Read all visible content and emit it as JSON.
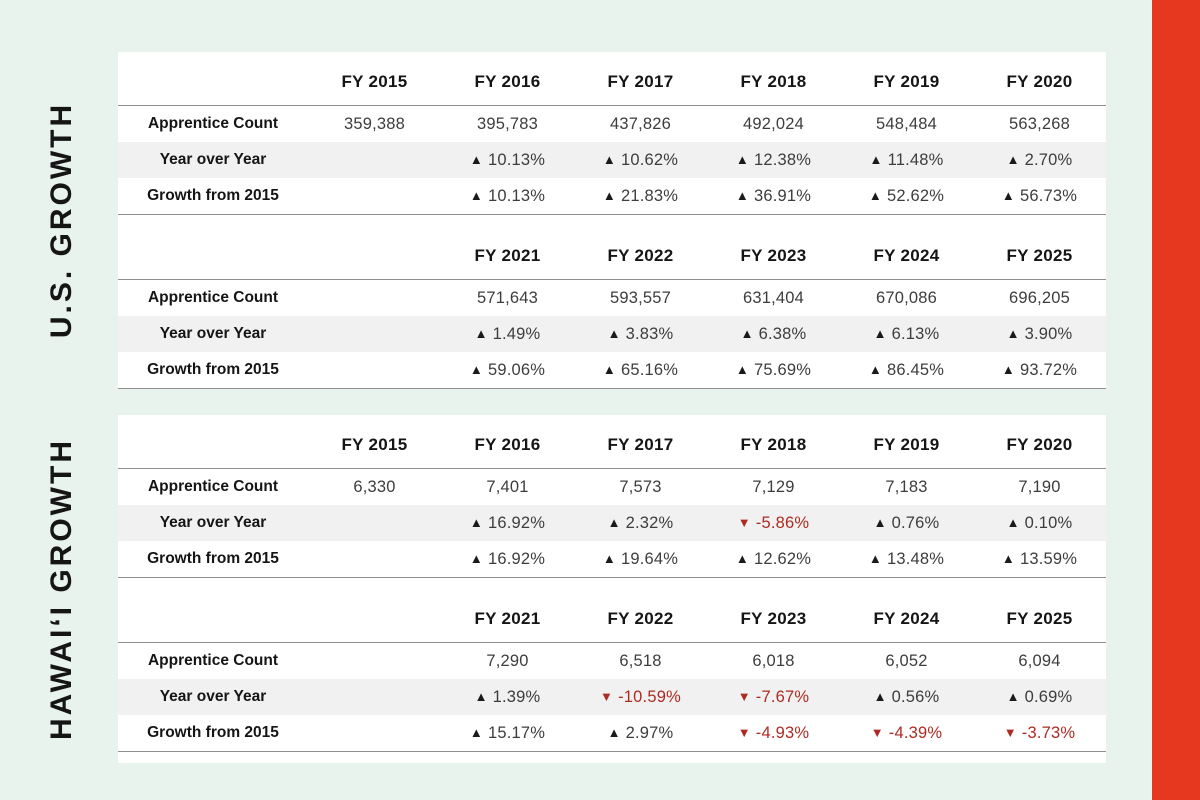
{
  "colors": {
    "background": "#E9F3EE",
    "panel": "#FFFFFF",
    "accent_bar": "#E6381F",
    "negative": "#AE2B22",
    "alt_row_band": "#F1F1F1",
    "rule_line": "#8F8F8F"
  },
  "sections": [
    {
      "label": "U.S. GROWTH",
      "tables": [
        {
          "columns": [
            "",
            "FY 2015",
            "FY 2016",
            "FY 2017",
            "FY 2018",
            "FY 2019",
            "FY 2020"
          ],
          "rows": [
            {
              "label": "Apprentice Count",
              "alt": false,
              "cells": [
                {
                  "v": "359,388"
                },
                {
                  "v": "395,783"
                },
                {
                  "v": "437,826"
                },
                {
                  "v": "492,024"
                },
                {
                  "v": "548,484"
                },
                {
                  "v": "563,268"
                }
              ]
            },
            {
              "label": "Year over Year",
              "alt": true,
              "cells": [
                null,
                {
                  "v": "10.13%",
                  "t": "up"
                },
                {
                  "v": "10.62%",
                  "t": "up"
                },
                {
                  "v": "12.38%",
                  "t": "up"
                },
                {
                  "v": "11.48%",
                  "t": "up"
                },
                {
                  "v": "2.70%",
                  "t": "up"
                }
              ]
            },
            {
              "label": "Growth from 2015",
              "alt": false,
              "cells": [
                null,
                {
                  "v": "10.13%",
                  "t": "up"
                },
                {
                  "v": "21.83%",
                  "t": "up"
                },
                {
                  "v": "36.91%",
                  "t": "up"
                },
                {
                  "v": "52.62%",
                  "t": "up"
                },
                {
                  "v": "56.73%",
                  "t": "up"
                }
              ]
            }
          ]
        },
        {
          "columns": [
            "",
            "",
            "FY 2021",
            "FY 2022",
            "FY 2023",
            "FY 2024",
            "FY 2025"
          ],
          "rows": [
            {
              "label": "Apprentice Count",
              "alt": false,
              "cells": [
                null,
                {
                  "v": "571,643"
                },
                {
                  "v": "593,557"
                },
                {
                  "v": "631,404"
                },
                {
                  "v": "670,086"
                },
                {
                  "v": "696,205"
                }
              ]
            },
            {
              "label": "Year over Year",
              "alt": true,
              "cells": [
                null,
                {
                  "v": "1.49%",
                  "t": "up"
                },
                {
                  "v": "3.83%",
                  "t": "up"
                },
                {
                  "v": "6.38%",
                  "t": "up"
                },
                {
                  "v": "6.13%",
                  "t": "up"
                },
                {
                  "v": "3.90%",
                  "t": "up"
                }
              ]
            },
            {
              "label": "Growth from 2015",
              "alt": false,
              "cells": [
                null,
                {
                  "v": "59.06%",
                  "t": "up"
                },
                {
                  "v": "65.16%",
                  "t": "up"
                },
                {
                  "v": "75.69%",
                  "t": "up"
                },
                {
                  "v": "86.45%",
                  "t": "up"
                },
                {
                  "v": "93.72%",
                  "t": "up"
                }
              ]
            }
          ]
        }
      ]
    },
    {
      "label": "HAWAI‘I GROWTH",
      "tables": [
        {
          "columns": [
            "",
            "FY 2015",
            "FY 2016",
            "FY 2017",
            "FY 2018",
            "FY 2019",
            "FY 2020"
          ],
          "rows": [
            {
              "label": "Apprentice Count",
              "alt": false,
              "cells": [
                {
                  "v": "6,330"
                },
                {
                  "v": "7,401"
                },
                {
                  "v": "7,573"
                },
                {
                  "v": "7,129"
                },
                {
                  "v": "7,183"
                },
                {
                  "v": "7,190"
                }
              ]
            },
            {
              "label": "Year over Year",
              "alt": true,
              "cells": [
                null,
                {
                  "v": "16.92%",
                  "t": "up"
                },
                {
                  "v": "2.32%",
                  "t": "up"
                },
                {
                  "v": "-5.86%",
                  "t": "down"
                },
                {
                  "v": "0.76%",
                  "t": "up"
                },
                {
                  "v": "0.10%",
                  "t": "up"
                }
              ]
            },
            {
              "label": "Growth from 2015",
              "alt": false,
              "cells": [
                null,
                {
                  "v": "16.92%",
                  "t": "up"
                },
                {
                  "v": "19.64%",
                  "t": "up"
                },
                {
                  "v": "12.62%",
                  "t": "up"
                },
                {
                  "v": "13.48%",
                  "t": "up"
                },
                {
                  "v": "13.59%",
                  "t": "up"
                }
              ]
            }
          ]
        },
        {
          "columns": [
            "",
            "",
            "FY 2021",
            "FY 2022",
            "FY 2023",
            "FY 2024",
            "FY 2025"
          ],
          "rows": [
            {
              "label": "Apprentice Count",
              "alt": false,
              "cells": [
                null,
                {
                  "v": "7,290"
                },
                {
                  "v": "6,518"
                },
                {
                  "v": "6,018"
                },
                {
                  "v": "6,052"
                },
                {
                  "v": "6,094"
                }
              ]
            },
            {
              "label": "Year over Year",
              "alt": true,
              "cells": [
                null,
                {
                  "v": "1.39%",
                  "t": "up"
                },
                {
                  "v": "-10.59%",
                  "t": "down"
                },
                {
                  "v": "-7.67%",
                  "t": "down"
                },
                {
                  "v": "0.56%",
                  "t": "up"
                },
                {
                  "v": "0.69%",
                  "t": "up"
                }
              ]
            },
            {
              "label": "Growth from 2015",
              "alt": false,
              "cells": [
                null,
                {
                  "v": "15.17%",
                  "t": "up"
                },
                {
                  "v": "2.97%",
                  "t": "up"
                },
                {
                  "v": "-4.93%",
                  "t": "down"
                },
                {
                  "v": "-4.39%",
                  "t": "down"
                },
                {
                  "v": "-3.73%",
                  "t": "down"
                }
              ]
            }
          ]
        }
      ]
    }
  ],
  "chart_data": [
    {
      "type": "table",
      "title": "U.S. GROWTH",
      "categories": [
        "FY 2015",
        "FY 2016",
        "FY 2017",
        "FY 2018",
        "FY 2019",
        "FY 2020",
        "FY 2021",
        "FY 2022",
        "FY 2023",
        "FY 2024",
        "FY 2025"
      ],
      "series": [
        {
          "name": "Apprentice Count",
          "values": [
            359388,
            395783,
            437826,
            492024,
            548484,
            563268,
            571643,
            593557,
            631404,
            670086,
            696205
          ]
        },
        {
          "name": "Year over Year (%)",
          "values": [
            null,
            10.13,
            10.62,
            12.38,
            11.48,
            2.7,
            1.49,
            3.83,
            6.38,
            6.13,
            3.9
          ]
        },
        {
          "name": "Growth from 2015 (%)",
          "values": [
            null,
            10.13,
            21.83,
            36.91,
            52.62,
            56.73,
            59.06,
            65.16,
            75.69,
            86.45,
            93.72
          ]
        }
      ]
    },
    {
      "type": "table",
      "title": "HAWAI‘I GROWTH",
      "categories": [
        "FY 2015",
        "FY 2016",
        "FY 2017",
        "FY 2018",
        "FY 2019",
        "FY 2020",
        "FY 2021",
        "FY 2022",
        "FY 2023",
        "FY 2024",
        "FY 2025"
      ],
      "series": [
        {
          "name": "Apprentice Count",
          "values": [
            6330,
            7401,
            7573,
            7129,
            7183,
            7190,
            7290,
            6518,
            6018,
            6052,
            6094
          ]
        },
        {
          "name": "Year over Year (%)",
          "values": [
            null,
            16.92,
            2.32,
            -5.86,
            0.76,
            0.1,
            1.39,
            -10.59,
            -7.67,
            0.56,
            0.69
          ]
        },
        {
          "name": "Growth from 2015 (%)",
          "values": [
            null,
            16.92,
            19.64,
            12.62,
            13.48,
            13.59,
            15.17,
            2.97,
            -4.93,
            -4.39,
            -3.73
          ]
        }
      ]
    }
  ]
}
